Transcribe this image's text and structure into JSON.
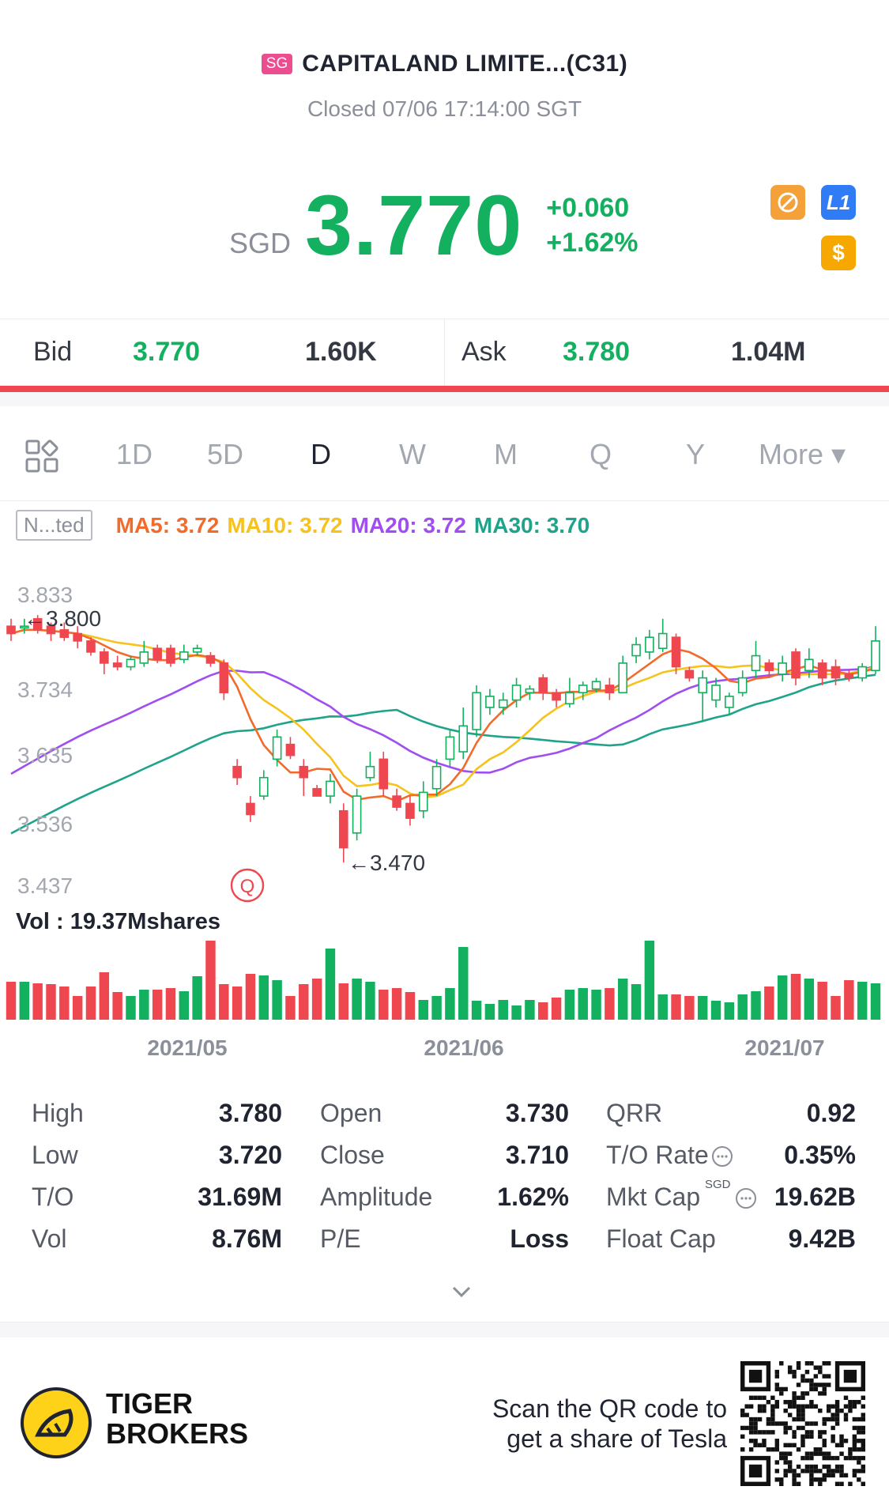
{
  "header": {
    "market_badge": "SG",
    "title": "CAPITALAND LIMITE...(C31)",
    "status": "Closed 07/06 17:14:00 SGT",
    "currency": "SGD",
    "price": "3.770",
    "change": "+0.060",
    "change_pct": "+1.62%",
    "icons": [
      "no-entry-icon",
      "level1-icon",
      "dollar-icon"
    ],
    "level1_label": "L1",
    "dollar_label": "$"
  },
  "bid_ask": {
    "bid_label": "Bid",
    "bid_price": "3.770",
    "bid_qty": "1.60K",
    "ask_label": "Ask",
    "ask_price": "3.780",
    "ask_qty": "1.04M"
  },
  "tabs": {
    "items": [
      "1D",
      "5D",
      "D",
      "W",
      "M",
      "Q",
      "Y",
      "More ▾"
    ],
    "active": "D"
  },
  "ma": {
    "indicator_box": "N...ted",
    "ma5": "MA5: 3.72",
    "ma10": "MA10: 3.72",
    "ma20": "MA20: 3.72",
    "ma30": "MA30: 3.70",
    "colors": {
      "ma5": "#f26b2b",
      "ma10": "#f6c21b",
      "ma20": "#a04ef0",
      "ma30": "#1fa38a"
    }
  },
  "chart_data": {
    "type": "candlestick",
    "y_ticks": [
      "3.833",
      "3.734",
      "3.635",
      "3.536",
      "3.437"
    ],
    "ylim": [
      3.437,
      3.833
    ],
    "high_marker": "←3.800",
    "low_marker": "←3.470",
    "x_labels": [
      "2021/05",
      "2021/06",
      "2021/07"
    ],
    "q_marker": "Q",
    "volume_label": "Vol  : 19.37Mshares",
    "up_color": "#12b05f",
    "down_color": "#ef4750"
  },
  "stats": {
    "rows": [
      [
        [
          "High",
          "3.780"
        ],
        [
          "Open",
          "3.730"
        ],
        [
          "QRR",
          "0.92"
        ]
      ],
      [
        [
          "Low",
          "3.720"
        ],
        [
          "Close",
          "3.710"
        ],
        [
          "T/O Rate",
          "0.35%"
        ]
      ],
      [
        [
          "T/O",
          "31.69M"
        ],
        [
          "Amplitude",
          "1.62%"
        ],
        [
          "Mkt Cap",
          "19.62B"
        ]
      ],
      [
        [
          "Vol",
          "8.76M"
        ],
        [
          "P/E",
          "Loss"
        ],
        [
          "Float Cap",
          "9.42B"
        ]
      ]
    ],
    "mkt_cap_unit": "SGD"
  },
  "footer": {
    "brand_line1": "TIGER",
    "brand_line2": "BROKERS",
    "promo_line1": "Scan the QR code to",
    "promo_line2": "get a share of Tesla"
  }
}
